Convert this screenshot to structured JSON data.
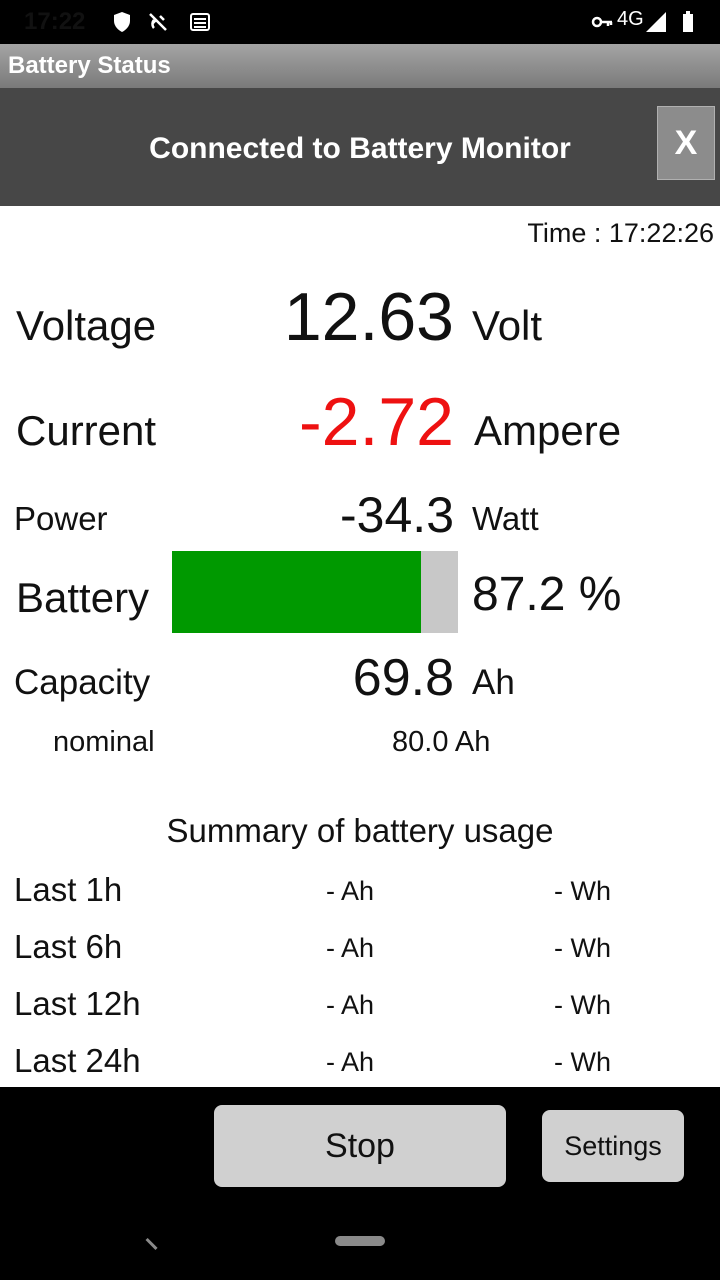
{
  "status_bar": {
    "time": "17:22",
    "network": "4G",
    "icons": [
      "shield-icon",
      "no-satellite-icon",
      "storage-icon",
      "vpn-key-icon",
      "signal-icon",
      "battery-icon"
    ]
  },
  "app": {
    "title": "Battery Status"
  },
  "banner": {
    "text": "Connected to Battery Monitor",
    "close_label": "X"
  },
  "time_line": "Time : 17:22:26",
  "readings": {
    "voltage": {
      "label": "Voltage",
      "value": "12.63",
      "unit": "Volt"
    },
    "current": {
      "label": "Current",
      "value": "-2.72",
      "unit": "Ampere",
      "color": "#ee1111"
    },
    "power": {
      "label": "Power",
      "value": "-34.3",
      "unit": "Watt"
    },
    "battery": {
      "label": "Battery",
      "percent_text": "87.2 %",
      "level": 0.872,
      "fill_color": "#009900"
    },
    "capacity": {
      "label": "Capacity",
      "value": "69.8",
      "unit": "Ah"
    },
    "nominal": {
      "label": "nominal",
      "value": "80.0 Ah"
    }
  },
  "summary": {
    "title": "Summary of battery usage",
    "rows": [
      {
        "label": "Last 1h",
        "ah": "- Ah",
        "wh": "- Wh"
      },
      {
        "label": "Last 6h",
        "ah": "- Ah",
        "wh": "- Wh"
      },
      {
        "label": "Last 12h",
        "ah": "- Ah",
        "wh": "- Wh"
      },
      {
        "label": "Last 24h",
        "ah": "- Ah",
        "wh": "- Wh"
      }
    ]
  },
  "buttons": {
    "stop": "Stop",
    "settings": "Settings"
  }
}
